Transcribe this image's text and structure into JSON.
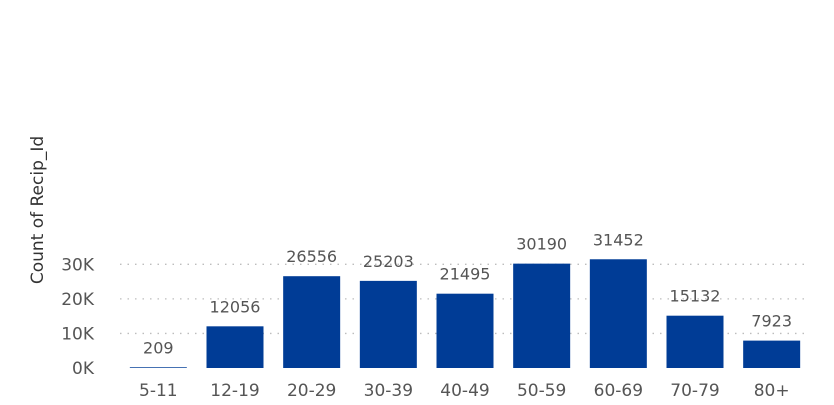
{
  "chart_data": {
    "type": "bar",
    "categories": [
      "5-11",
      "12-19",
      "20-29",
      "30-39",
      "40-49",
      "50-59",
      "60-69",
      "70-79",
      "80+"
    ],
    "values": [
      209,
      12056,
      26556,
      25203,
      21495,
      30190,
      31452,
      15132,
      7923
    ],
    "data_labels": [
      "209",
      "12056",
      "26556",
      "25203",
      "21495",
      "30190",
      "31452",
      "15132",
      "7923"
    ],
    "ylabel": "Count of Recip_Id",
    "xlabel": "",
    "title": "",
    "ylim": [
      0,
      30000
    ],
    "yticks": [
      0,
      10000,
      20000,
      30000
    ],
    "ytick_labels": [
      "0K",
      "10K",
      "20K",
      "30K"
    ],
    "grid": true,
    "bar_color": "#003c96"
  }
}
